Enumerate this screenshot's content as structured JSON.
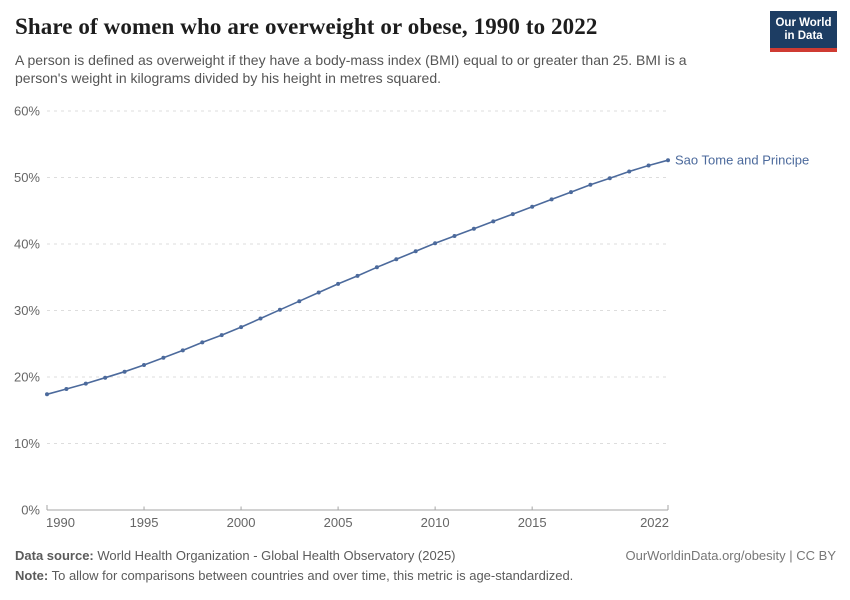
{
  "header": {
    "title": "Share of women who are overweight or obese, 1990 to 2022",
    "subtitle": "A person is defined as overweight if they have a body-mass index (BMI) equal to or greater than 25. BMI is a person's weight in kilograms divided by his height in metres squared."
  },
  "logo": {
    "line1": "Our World",
    "line2": "in Data",
    "bg_color": "#1d3d63",
    "stripe_color": "#cf3b32"
  },
  "chart_data": {
    "type": "line",
    "title": "Share of women who are overweight or obese, 1990 to 2022",
    "x": [
      1990,
      1991,
      1992,
      1993,
      1994,
      1995,
      1996,
      1997,
      1998,
      1999,
      2000,
      2001,
      2002,
      2003,
      2004,
      2005,
      2006,
      2007,
      2008,
      2009,
      2010,
      2011,
      2012,
      2013,
      2014,
      2015,
      2016,
      2017,
      2018,
      2019,
      2020,
      2021,
      2022
    ],
    "series": [
      {
        "name": "Sao Tome and Principe",
        "color": "#4C6A9C",
        "values": [
          17.4,
          18.2,
          19.0,
          19.9,
          20.8,
          21.8,
          22.9,
          24.0,
          25.2,
          26.3,
          27.5,
          28.8,
          30.1,
          31.4,
          32.7,
          34.0,
          35.2,
          36.5,
          37.7,
          38.9,
          40.1,
          41.2,
          42.3,
          43.4,
          44.5,
          45.6,
          46.7,
          47.8,
          48.9,
          49.9,
          50.9,
          51.8,
          52.6
        ]
      }
    ],
    "x_ticks": [
      1990,
      1995,
      2000,
      2005,
      2010,
      2015,
      2022
    ],
    "y_ticks": [
      0,
      10,
      20,
      30,
      40,
      50,
      60
    ],
    "y_tick_suffix": "%",
    "x_range": [
      1990,
      2022
    ],
    "ylim": [
      0,
      60
    ],
    "grid": "horizontal-dashed",
    "legend_position": "end-of-line"
  },
  "footer": {
    "data_source_label": "Data source:",
    "data_source_text": " World Health Organization - Global Health Observatory (2025)",
    "note_label": "Note:",
    "note_text": " To allow for comparisons between countries and over time, this metric is age-standardized.",
    "link": "OurWorldinData.org/obesity | CC BY"
  },
  "colors": {
    "line": "#4C6A9C",
    "grid": "#dddddd",
    "axis": "#a6a6a6",
    "tick_label": "#666666"
  }
}
